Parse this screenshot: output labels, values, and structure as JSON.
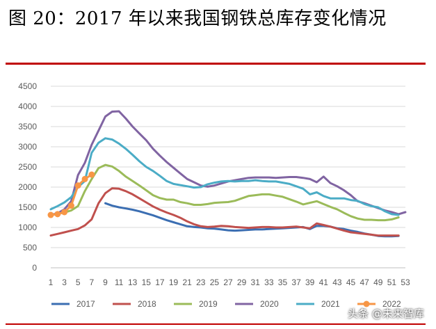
{
  "figure_title": "图 20：2017 年以来我国钢铁总库存变化情况",
  "watermark": "头条 @未来智库",
  "colors": {
    "accent_rule": "#c00000",
    "s2017": "#3b6eb2",
    "s2018": "#c0504d",
    "s2019": "#9bbb59",
    "s2020": "#8064a2",
    "s2021": "#4bacc6",
    "s2022": "#f79646"
  },
  "chart_data": {
    "type": "line",
    "title": "",
    "xlabel": "",
    "ylabel": "",
    "ylim": [
      0,
      4500
    ],
    "yticks": [
      0,
      500,
      1000,
      1500,
      2000,
      2500,
      3000,
      3500,
      4000,
      4500
    ],
    "xlim": [
      1,
      53
    ],
    "xticks": [
      1,
      3,
      5,
      7,
      9,
      11,
      13,
      15,
      17,
      19,
      21,
      23,
      25,
      27,
      29,
      31,
      33,
      35,
      37,
      39,
      41,
      43,
      45,
      47,
      49,
      51,
      53
    ],
    "grid": "horizontal",
    "legend": "bottom",
    "series": [
      {
        "name": "2017",
        "color": "#3b6eb2",
        "x": [
          9,
          10,
          11,
          12,
          13,
          14,
          15,
          16,
          17,
          18,
          19,
          20,
          21,
          22,
          23,
          24,
          25,
          26,
          27,
          28,
          29,
          30,
          31,
          32,
          33,
          34,
          35,
          36,
          37,
          38,
          39,
          40,
          41,
          42,
          43,
          44,
          45,
          46,
          47,
          48,
          49,
          50,
          51,
          52
        ],
        "y": [
          1600,
          1540,
          1500,
          1470,
          1440,
          1400,
          1350,
          1300,
          1240,
          1180,
          1130,
          1080,
          1030,
          1010,
          1000,
          980,
          970,
          950,
          930,
          920,
          930,
          940,
          950,
          950,
          960,
          970,
          980,
          990,
          1000,
          1010,
          960,
          1040,
          1040,
          1020,
          980,
          960,
          920,
          890,
          850,
          820,
          790,
          780,
          780,
          790
        ]
      },
      {
        "name": "2018",
        "color": "#c0504d",
        "x": [
          1,
          2,
          3,
          4,
          5,
          6,
          7,
          8,
          9,
          10,
          11,
          12,
          13,
          14,
          15,
          16,
          17,
          18,
          19,
          20,
          21,
          22,
          23,
          24,
          25,
          26,
          27,
          28,
          29,
          30,
          31,
          32,
          33,
          34,
          35,
          36,
          37,
          38,
          39,
          40,
          41,
          42,
          43,
          44,
          45,
          46,
          47,
          48,
          49,
          50,
          51,
          52
        ],
        "y": [
          800,
          840,
          880,
          920,
          960,
          1050,
          1200,
          1600,
          1850,
          1970,
          1960,
          1900,
          1820,
          1720,
          1620,
          1520,
          1440,
          1370,
          1310,
          1240,
          1150,
          1080,
          1030,
          1010,
          1020,
          1040,
          1030,
          1010,
          1000,
          990,
          1000,
          1010,
          1010,
          1000,
          1000,
          1010,
          1020,
          1000,
          980,
          1100,
          1060,
          1020,
          970,
          920,
          880,
          860,
          840,
          820,
          800,
          800,
          800,
          800
        ]
      },
      {
        "name": "2019",
        "color": "#9bbb59",
        "x": [
          1,
          2,
          3,
          4,
          5,
          6,
          7,
          8,
          9,
          10,
          11,
          12,
          13,
          14,
          15,
          16,
          17,
          18,
          19,
          20,
          21,
          22,
          23,
          24,
          25,
          26,
          27,
          28,
          29,
          30,
          31,
          32,
          33,
          34,
          35,
          36,
          37,
          38,
          39,
          40,
          41,
          42,
          43,
          44,
          45,
          46,
          47,
          48,
          49,
          50,
          51,
          52
        ],
        "y": [
          1310,
          1340,
          1370,
          1420,
          1530,
          1900,
          2200,
          2470,
          2550,
          2510,
          2400,
          2260,
          2150,
          2040,
          1920,
          1800,
          1730,
          1690,
          1690,
          1630,
          1600,
          1560,
          1560,
          1580,
          1610,
          1620,
          1630,
          1660,
          1720,
          1780,
          1800,
          1820,
          1820,
          1790,
          1760,
          1700,
          1640,
          1570,
          1610,
          1650,
          1580,
          1510,
          1450,
          1360,
          1280,
          1220,
          1190,
          1190,
          1180,
          1180,
          1200,
          1250
        ]
      },
      {
        "name": "2020",
        "color": "#8064a2",
        "x": [
          1,
          2,
          3,
          4,
          5,
          6,
          7,
          8,
          9,
          10,
          11,
          12,
          13,
          14,
          15,
          16,
          17,
          18,
          19,
          20,
          21,
          22,
          23,
          24,
          25,
          26,
          27,
          28,
          29,
          30,
          31,
          32,
          33,
          34,
          35,
          36,
          37,
          38,
          39,
          40,
          41,
          42,
          43,
          44,
          45,
          46,
          47,
          48,
          49,
          50,
          51,
          52,
          53
        ],
        "y": [
          1310,
          1350,
          1450,
          1650,
          2300,
          2600,
          3050,
          3400,
          3750,
          3870,
          3880,
          3700,
          3500,
          3330,
          3160,
          2950,
          2780,
          2620,
          2480,
          2340,
          2200,
          2120,
          2040,
          2010,
          2040,
          2090,
          2140,
          2170,
          2200,
          2230,
          2240,
          2240,
          2240,
          2230,
          2240,
          2250,
          2250,
          2230,
          2200,
          2120,
          2260,
          2100,
          2020,
          1920,
          1800,
          1650,
          1600,
          1540,
          1480,
          1420,
          1380,
          1330,
          1380
        ]
      },
      {
        "name": "2021",
        "color": "#4bacc6",
        "x": [
          1,
          2,
          3,
          4,
          5,
          6,
          7,
          8,
          9,
          10,
          11,
          12,
          13,
          14,
          15,
          16,
          17,
          18,
          19,
          20,
          21,
          22,
          23,
          24,
          25,
          26,
          27,
          28,
          29,
          30,
          31,
          32,
          33,
          34,
          35,
          36,
          37,
          38,
          39,
          40,
          41,
          42,
          43,
          44,
          45,
          46,
          47,
          48,
          49,
          50,
          51,
          52
        ],
        "y": [
          1450,
          1530,
          1620,
          1750,
          2000,
          2150,
          2850,
          3100,
          3210,
          3180,
          3080,
          2950,
          2800,
          2640,
          2500,
          2400,
          2280,
          2150,
          2080,
          2050,
          2020,
          1990,
          2000,
          2070,
          2110,
          2140,
          2150,
          2140,
          2150,
          2150,
          2170,
          2150,
          2140,
          2140,
          2110,
          2080,
          2020,
          1960,
          1820,
          1870,
          1780,
          1720,
          1720,
          1720,
          1680,
          1660,
          1580,
          1530,
          1500,
          1400,
          1330,
          1310
        ]
      },
      {
        "name": "2022",
        "color": "#f79646",
        "x": [
          1,
          2,
          3,
          4,
          5,
          6,
          7
        ],
        "y": [
          1310,
          1330,
          1380,
          1540,
          2040,
          2200,
          2310
        ]
      }
    ]
  }
}
